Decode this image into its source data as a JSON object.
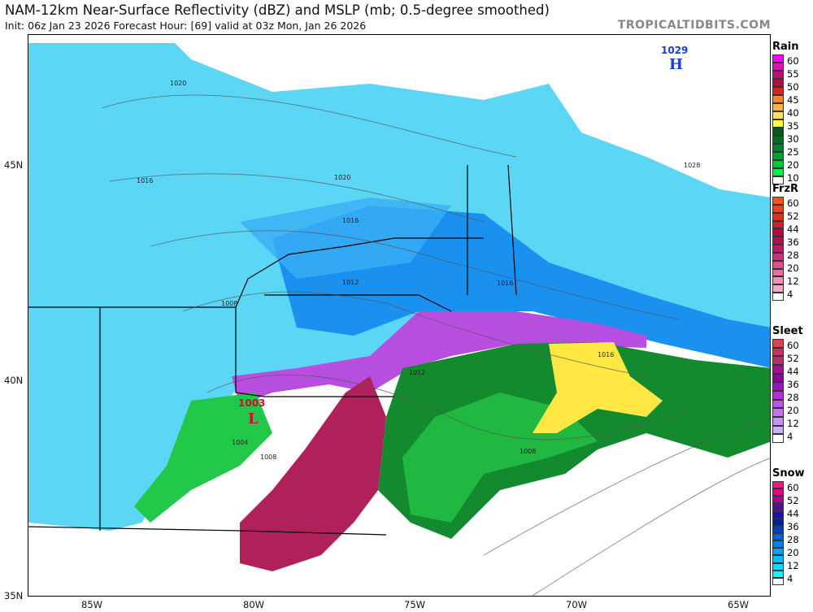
{
  "header": {
    "title": "NAM-12km Near-Surface Reflectivity (dBZ) and MSLP (mb; 0.5-degree smoothed)",
    "subtitle": "Init: 06z Jan 23 2026   Forecast Hour: [69]   valid at 03z Mon, Jan 26 2026",
    "brand": "TROPICALTIDBITS.COM"
  },
  "axes": {
    "lat": [
      "45N",
      "40N",
      "35N"
    ],
    "lon": [
      "85W",
      "80W",
      "75W",
      "70W",
      "65W"
    ]
  },
  "pressure_centers": [
    {
      "type": "H",
      "value": "1029",
      "color": "#1a3fd1"
    },
    {
      "type": "L",
      "value": "1003",
      "color": "#c8102e"
    }
  ],
  "isobar_labels": [
    "1020",
    "1016",
    "1020",
    "1016",
    "1012",
    "1008",
    "1016",
    "1012",
    "1016",
    "1008",
    "1004",
    "1008",
    "1028"
  ],
  "legends": [
    {
      "name": "Rain",
      "labels": [
        "60",
        "55",
        "50",
        "45",
        "40",
        "35",
        "30",
        "25",
        "20",
        "10"
      ],
      "colors": [
        "#ff00ff",
        "#e010c0",
        "#c00c78",
        "#b01040",
        "#e02020",
        "#ff8030",
        "#ffb040",
        "#ffe060",
        "#ffff40",
        "#005a1e",
        "#006d22",
        "#008028",
        "#00a030",
        "#00c83a",
        "#00f048",
        "#ffffff"
      ]
    },
    {
      "name": "FrzR",
      "labels": [
        "60",
        "52",
        "44",
        "36",
        "28",
        "20",
        "12",
        "4"
      ],
      "colors": [
        "#ff5020",
        "#f04020",
        "#e03020",
        "#d02030",
        "#b00c40",
        "#b01050",
        "#c01868",
        "#d03078",
        "#e05090",
        "#e870a0",
        "#f090b8",
        "#f8a8c8",
        "#ffffff"
      ]
    },
    {
      "name": "Sleet",
      "labels": [
        "60",
        "52",
        "44",
        "36",
        "28",
        "20",
        "12",
        "4"
      ],
      "colors": [
        "#e04050",
        "#d03060",
        "#c02870",
        "#a01090",
        "#9000a0",
        "#a010c0",
        "#b030d8",
        "#c050e8",
        "#c870f0",
        "#c890f8",
        "#c8b0ff",
        "#ffffff"
      ]
    },
    {
      "name": "Snow",
      "labels": [
        "60",
        "52",
        "44",
        "36",
        "28",
        "20",
        "12",
        "4"
      ],
      "colors": [
        "#ff1080",
        "#e00090",
        "#b00090",
        "#501090",
        "#2010a0",
        "#0020a0",
        "#0040c0",
        "#0060e0",
        "#0080f0",
        "#00a0ff",
        "#00c0ff",
        "#00e0ff",
        "#00ffff",
        "#ffffff"
      ]
    }
  ]
}
